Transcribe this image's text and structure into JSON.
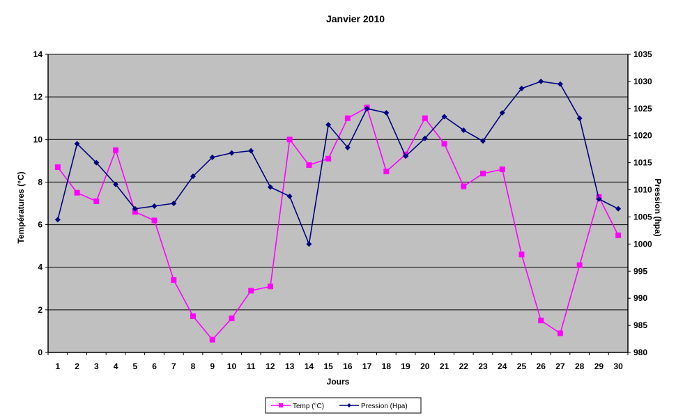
{
  "chart_data": {
    "type": "line",
    "title": "Janvier 2010",
    "xlabel": "Jours",
    "ylabel_left": "Températures (°C)",
    "ylabel_right": "Pression (hpa)",
    "x": [
      1,
      2,
      3,
      4,
      5,
      6,
      7,
      8,
      9,
      10,
      11,
      12,
      13,
      14,
      15,
      16,
      17,
      18,
      19,
      20,
      21,
      22,
      23,
      24,
      25,
      26,
      27,
      28,
      29,
      30
    ],
    "x_tick_labels": [
      "1",
      "2",
      "3",
      "4",
      "5",
      "6",
      "7",
      "8",
      "9",
      "10",
      "11",
      "12",
      "13",
      "14",
      "15",
      "16",
      "17",
      "18",
      "19",
      "20",
      "21",
      "22",
      "23",
      "24",
      "25",
      "26",
      "27",
      "28",
      "29",
      "30"
    ],
    "ylim_left": [
      0,
      14
    ],
    "ylim_right": [
      980,
      1035
    ],
    "left_ticks": [
      "0",
      "2",
      "4",
      "6",
      "8",
      "10",
      "12",
      "14"
    ],
    "right_ticks": [
      "980",
      "985",
      "990",
      "995",
      "1000",
      "1005",
      "1010",
      "1015",
      "1020",
      "1025",
      "1030",
      "1035"
    ],
    "grid": "horizontal",
    "background": "#c0c0c0",
    "legend_position": "bottom",
    "series": [
      {
        "name": "Temp (°C)",
        "axis": "left",
        "color": "#ff00ff",
        "marker": "square",
        "values": [
          8.7,
          7.5,
          7.1,
          9.5,
          6.6,
          6.2,
          3.4,
          1.7,
          0.6,
          1.6,
          2.9,
          3.1,
          10.0,
          8.8,
          9.1,
          11.0,
          11.5,
          8.5,
          9.3,
          11.0,
          9.8,
          7.8,
          8.4,
          8.6,
          4.6,
          1.5,
          0.9,
          4.1,
          7.3,
          5.5
        ]
      },
      {
        "name": "Pression (Hpa)",
        "axis": "right",
        "color": "#000080",
        "marker": "diamond",
        "values": [
          1004.5,
          1018.5,
          1015.0,
          1011.0,
          1006.5,
          1007.0,
          1007.5,
          1012.5,
          1016.0,
          1016.8,
          1017.2,
          1010.5,
          1008.8,
          1000.0,
          1022.0,
          1017.8,
          1025.0,
          1024.2,
          1016.2,
          1019.5,
          1023.5,
          1021.0,
          1019.0,
          1024.2,
          1028.7,
          1030.0,
          1029.5,
          1023.2,
          1008.3,
          1006.5
        ]
      }
    ]
  }
}
